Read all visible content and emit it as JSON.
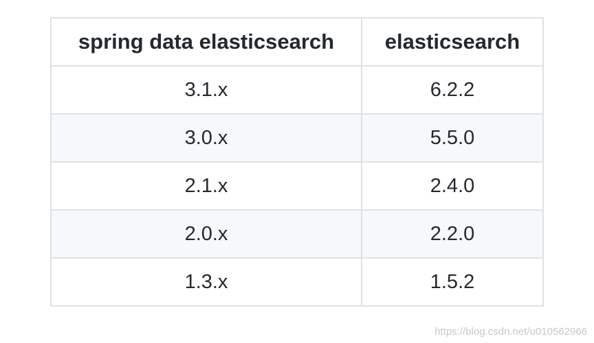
{
  "table": {
    "header": [
      "spring data elasticsearch",
      "elasticsearch"
    ],
    "rows": [
      [
        "3.1.x",
        "6.2.2"
      ],
      [
        "3.0.x",
        "5.5.0"
      ],
      [
        "2.1.x",
        "2.4.0"
      ],
      [
        "2.0.x",
        "2.2.0"
      ],
      [
        "1.3.x",
        "1.5.2"
      ]
    ]
  },
  "watermark": "https://blog.csdn.net/u010562966"
}
